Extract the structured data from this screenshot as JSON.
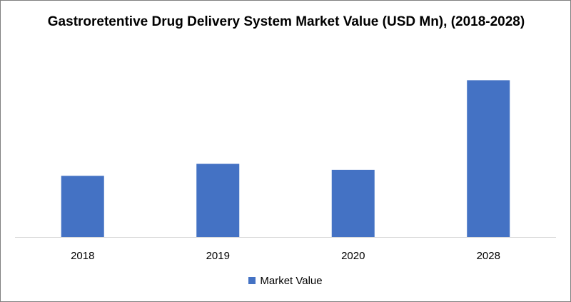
{
  "chart_data": {
    "type": "bar",
    "title": "Gastroretentive Drug Delivery System Market Value (USD Mn), (2018-2028)",
    "categories": [
      "2018",
      "2019",
      "2020",
      "2028"
    ],
    "series": [
      {
        "name": "Market Value",
        "values": [
          410,
          490,
          450,
          1050
        ],
        "color": "#4472c4"
      }
    ],
    "xlabel": "",
    "ylabel": "",
    "ylim": [
      0,
      1200
    ],
    "grid": false,
    "legend": "bottom"
  }
}
